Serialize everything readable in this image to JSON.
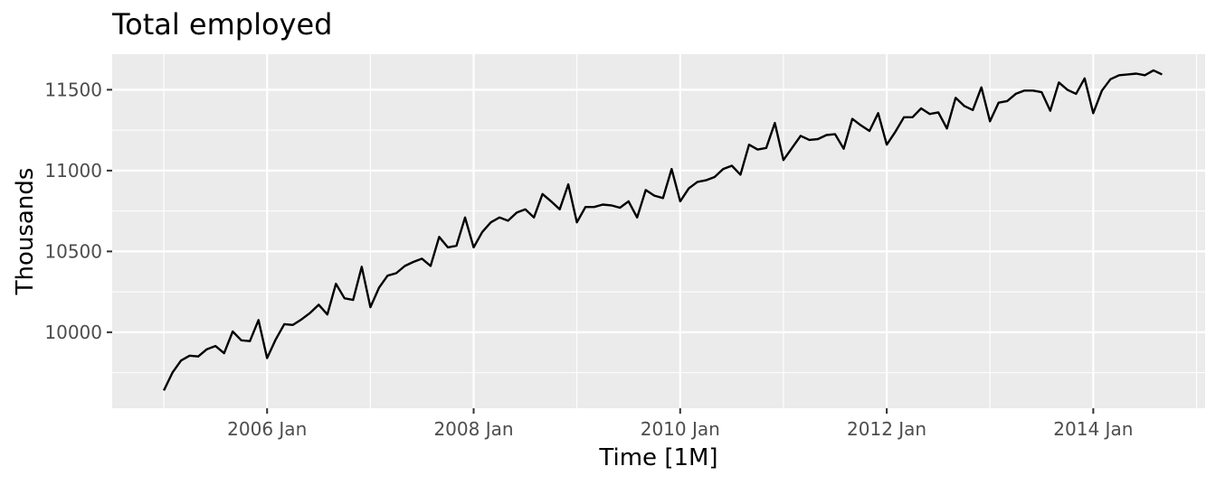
{
  "chart_data": {
    "type": "line",
    "title": "Total employed",
    "xlabel": "Time [1M]",
    "ylabel": "Thousands",
    "x_ticks": [
      "2006 Jan",
      "2008 Jan",
      "2010 Jan",
      "2012 Jan",
      "2014 Jan"
    ],
    "y_ticks": [
      10000,
      10500,
      11000,
      11500
    ],
    "x_range": [
      "2004-07",
      "2015-02"
    ],
    "ylim": [
      9530,
      11720
    ],
    "grid": true,
    "background": "#ebebeb",
    "line_color": "#000000",
    "x": [
      "2005-01",
      "2005-02",
      "2005-03",
      "2005-04",
      "2005-05",
      "2005-06",
      "2005-07",
      "2005-08",
      "2005-09",
      "2005-10",
      "2005-11",
      "2005-12",
      "2006-01",
      "2006-02",
      "2006-03",
      "2006-04",
      "2006-05",
      "2006-06",
      "2006-07",
      "2006-08",
      "2006-09",
      "2006-10",
      "2006-11",
      "2006-12",
      "2007-01",
      "2007-02",
      "2007-03",
      "2007-04",
      "2007-05",
      "2007-06",
      "2007-07",
      "2007-08",
      "2007-09",
      "2007-10",
      "2007-11",
      "2007-12",
      "2008-01",
      "2008-02",
      "2008-03",
      "2008-04",
      "2008-05",
      "2008-06",
      "2008-07",
      "2008-08",
      "2008-09",
      "2008-10",
      "2008-11",
      "2008-12",
      "2009-01",
      "2009-02",
      "2009-03",
      "2009-04",
      "2009-05",
      "2009-06",
      "2009-07",
      "2009-08",
      "2009-09",
      "2009-10",
      "2009-11",
      "2009-12",
      "2010-01",
      "2010-02",
      "2010-03",
      "2010-04",
      "2010-05",
      "2010-06",
      "2010-07",
      "2010-08",
      "2010-09",
      "2010-10",
      "2010-11",
      "2010-12",
      "2011-01",
      "2011-02",
      "2011-03",
      "2011-04",
      "2011-05",
      "2011-06",
      "2011-07",
      "2011-08",
      "2011-09",
      "2011-10",
      "2011-11",
      "2011-12",
      "2012-01",
      "2012-02",
      "2012-03",
      "2012-04",
      "2012-05",
      "2012-06",
      "2012-07",
      "2012-08",
      "2012-09",
      "2012-10",
      "2012-11",
      "2012-12",
      "2013-01",
      "2013-02",
      "2013-03",
      "2013-04",
      "2013-05",
      "2013-06",
      "2013-07",
      "2013-08",
      "2013-09",
      "2013-10",
      "2013-11",
      "2013-12",
      "2014-01",
      "2014-02",
      "2014-03",
      "2014-04",
      "2014-05",
      "2014-06",
      "2014-07",
      "2014-08",
      "2014-09"
    ],
    "series": [
      {
        "values": [
          9640,
          9750,
          9825,
          9855,
          9850,
          9895,
          9915,
          9870,
          10005,
          9950,
          9945,
          10075,
          9840,
          9955,
          10050,
          10045,
          10080,
          10120,
          10170,
          10110,
          10300,
          10210,
          10200,
          10405,
          10155,
          10275,
          10350,
          10365,
          10410,
          10435,
          10455,
          10410,
          10590,
          10525,
          10535,
          10710,
          10525,
          10620,
          10680,
          10710,
          10690,
          10740,
          10760,
          10710,
          10855,
          10810,
          10760,
          10915,
          10680,
          10775,
          10775,
          10790,
          10785,
          10770,
          10810,
          10710,
          10880,
          10845,
          10830,
          11010,
          10810,
          10890,
          10930,
          10940,
          10960,
          11010,
          11030,
          10975,
          11160,
          11130,
          11140,
          11295,
          11065,
          11140,
          11215,
          11190,
          11195,
          11220,
          11225,
          11135,
          11320,
          11280,
          11245,
          11355,
          11160,
          11240,
          11330,
          11330,
          11385,
          11350,
          11360,
          11260,
          11450,
          11400,
          11375,
          11515,
          11305,
          11420,
          11430,
          11475,
          11495,
          11495,
          11485,
          11370,
          11545,
          11500,
          11475,
          11570,
          11355,
          11495,
          11565,
          11590,
          11595,
          11600,
          11590,
          11620,
          11595
        ]
      }
    ]
  }
}
